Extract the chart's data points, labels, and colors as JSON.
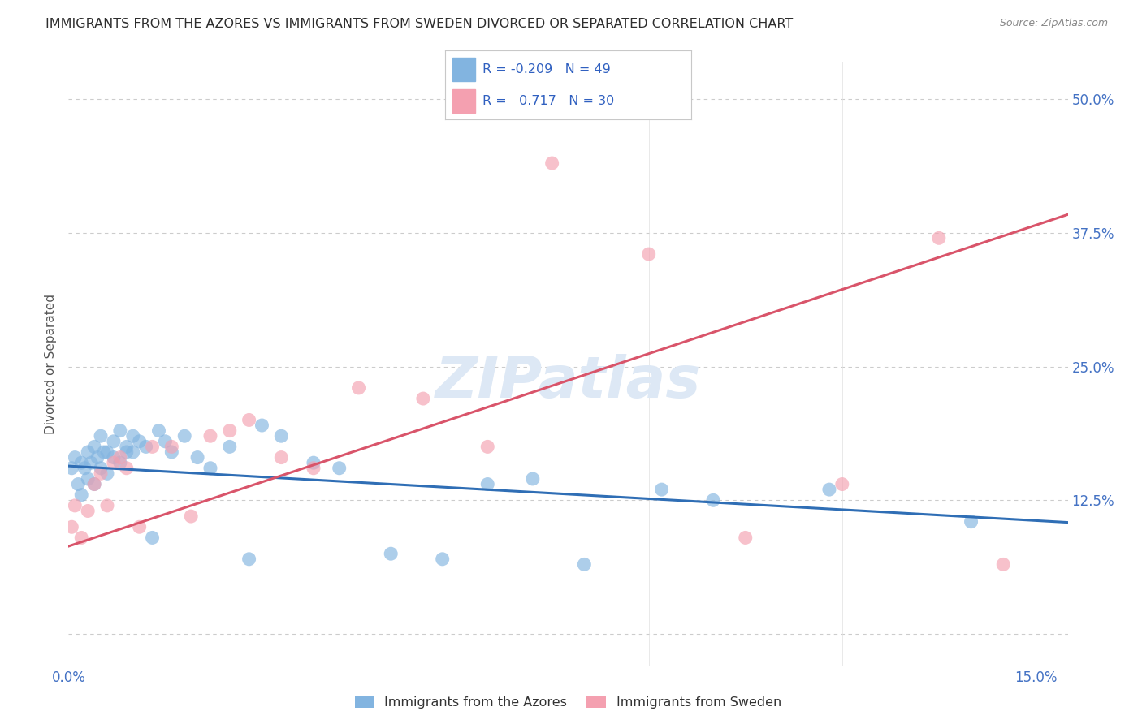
{
  "title": "IMMIGRANTS FROM THE AZORES VS IMMIGRANTS FROM SWEDEN DIVORCED OR SEPARATED CORRELATION CHART",
  "source": "Source: ZipAtlas.com",
  "ylabel": "Divorced or Separated",
  "yticks": [
    0.0,
    0.125,
    0.25,
    0.375,
    0.5
  ],
  "ytick_labels": [
    "",
    "12.5%",
    "25.0%",
    "37.5%",
    "50.0%"
  ],
  "xticks": [
    0.0,
    0.03,
    0.06,
    0.09,
    0.12,
    0.15
  ],
  "xtick_labels": [
    "0.0%",
    "",
    "",
    "",
    "",
    "15.0%"
  ],
  "xlim": [
    0.0,
    0.155
  ],
  "ylim": [
    -0.03,
    0.535
  ],
  "legend_label1": "Immigrants from the Azores",
  "legend_label2": "Immigrants from Sweden",
  "blue_color": "#82b4e0",
  "pink_color": "#f4a0b0",
  "blue_line_color": "#2f6eb5",
  "pink_line_color": "#d9546a",
  "blue_b": 0.157,
  "blue_m": -0.34,
  "pink_b": 0.082,
  "pink_m": 2.0,
  "watermark": "ZIPatlas",
  "watermark_color": "#dde8f5",
  "watermark_fontsize": 52,
  "background_color": "#ffffff",
  "title_color": "#2d2d2d",
  "title_fontsize": 11.5,
  "source_color": "#888888",
  "axis_label_color": "#4472c4",
  "ylabel_color": "#555555",
  "legend_text_color": "#3060c0",
  "azores_x": [
    0.0005,
    0.001,
    0.0015,
    0.002,
    0.002,
    0.0025,
    0.003,
    0.003,
    0.0035,
    0.004,
    0.004,
    0.0045,
    0.005,
    0.005,
    0.0055,
    0.006,
    0.006,
    0.007,
    0.007,
    0.008,
    0.008,
    0.009,
    0.009,
    0.01,
    0.01,
    0.011,
    0.012,
    0.013,
    0.014,
    0.015,
    0.016,
    0.018,
    0.02,
    0.022,
    0.025,
    0.028,
    0.03,
    0.033,
    0.038,
    0.042,
    0.05,
    0.058,
    0.065,
    0.072,
    0.08,
    0.092,
    0.1,
    0.118,
    0.14
  ],
  "azores_y": [
    0.155,
    0.165,
    0.14,
    0.16,
    0.13,
    0.155,
    0.17,
    0.145,
    0.16,
    0.175,
    0.14,
    0.165,
    0.155,
    0.185,
    0.17,
    0.17,
    0.15,
    0.18,
    0.165,
    0.16,
    0.19,
    0.175,
    0.17,
    0.17,
    0.185,
    0.18,
    0.175,
    0.09,
    0.19,
    0.18,
    0.17,
    0.185,
    0.165,
    0.155,
    0.175,
    0.07,
    0.195,
    0.185,
    0.16,
    0.155,
    0.075,
    0.07,
    0.14,
    0.145,
    0.065,
    0.135,
    0.125,
    0.135,
    0.105
  ],
  "sweden_x": [
    0.0005,
    0.001,
    0.002,
    0.003,
    0.004,
    0.005,
    0.006,
    0.007,
    0.008,
    0.009,
    0.011,
    0.013,
    0.016,
    0.019,
    0.022,
    0.025,
    0.028,
    0.033,
    0.038,
    0.045,
    0.055,
    0.065,
    0.075,
    0.09,
    0.105,
    0.12,
    0.135,
    0.145
  ],
  "sweden_y": [
    0.1,
    0.12,
    0.09,
    0.115,
    0.14,
    0.15,
    0.12,
    0.16,
    0.165,
    0.155,
    0.1,
    0.175,
    0.175,
    0.11,
    0.185,
    0.19,
    0.2,
    0.165,
    0.155,
    0.23,
    0.22,
    0.175,
    0.44,
    0.355,
    0.09,
    0.14,
    0.37,
    0.065
  ]
}
